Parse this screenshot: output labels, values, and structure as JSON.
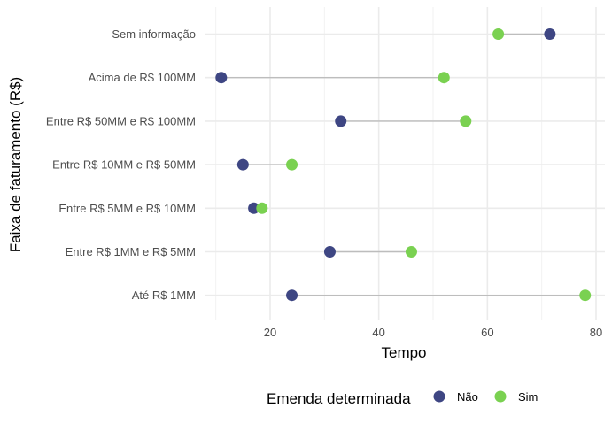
{
  "chart_data": {
    "type": "dumbbell",
    "xlabel": "Tempo",
    "ylabel": "Faixa de faturamento (R$)",
    "xlim": [
      8,
      81
    ],
    "x_ticks": [
      20,
      40,
      60,
      80
    ],
    "x_tick_labels": [
      "20",
      "40",
      "60",
      "80"
    ],
    "grid": true,
    "legend_position": "bottom",
    "legend": {
      "title": "Emenda determinada",
      "items": [
        {
          "label": "Não",
          "color": "#3e4683"
        },
        {
          "label": "Sim",
          "color": "#7ad151"
        }
      ]
    },
    "categories": [
      "Sem informação",
      "Acima de R$ 100MM",
      "Entre R$ 50MM e R$ 100MM",
      "Entre R$ 10MM e R$ 50MM",
      "Entre R$ 5MM e R$ 10MM",
      "Entre R$ 1MM e R$ 5MM",
      "Até R$ 1MM"
    ],
    "series": [
      {
        "name": "Não",
        "color": "#3e4683",
        "values": [
          71.5,
          11,
          33,
          15,
          17,
          31,
          24
        ]
      },
      {
        "name": "Sim",
        "color": "#7ad151",
        "values": [
          62,
          52,
          56,
          24,
          18.5,
          46,
          78
        ]
      }
    ],
    "segment_color": "#bdbdbd"
  }
}
